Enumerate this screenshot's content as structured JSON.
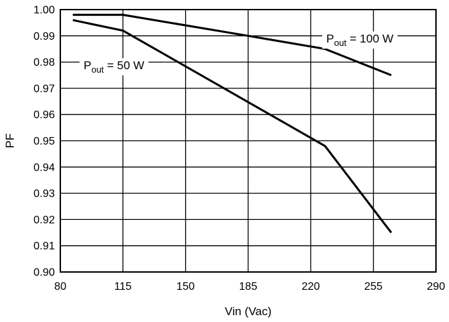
{
  "chart_data": {
    "type": "line",
    "title": "",
    "xlabel": "Vin (Vac)",
    "ylabel": "PF",
    "xlim": [
      80,
      290
    ],
    "ylim": [
      0.9,
      1.0
    ],
    "x_ticks": [
      80,
      115,
      150,
      185,
      220,
      255,
      290
    ],
    "x_tick_labels": [
      "80",
      "115",
      "150",
      "185",
      "220",
      "255",
      "290"
    ],
    "y_ticks": [
      0.9,
      0.91,
      0.92,
      0.93,
      0.94,
      0.95,
      0.96,
      0.97,
      0.98,
      0.99,
      1.0
    ],
    "y_tick_labels": [
      "0.90",
      "0.91",
      "0.92",
      "0.93",
      "0.94",
      "0.95",
      "0.96",
      "0.97",
      "0.98",
      "0.99",
      "1.00"
    ],
    "grid": true,
    "series": [
      {
        "name": "Pout = 100 W",
        "label_main": "P",
        "label_sub": "out",
        "label_rest": " = 100 W",
        "x": [
          87,
          115,
          185,
          228,
          265
        ],
        "y": [
          0.998,
          0.998,
          0.99,
          0.985,
          0.975
        ]
      },
      {
        "name": "Pout = 50 W",
        "label_main": "P",
        "label_sub": "out",
        "label_rest": " = 50 W",
        "x": [
          87,
          115,
          228,
          265
        ],
        "y": [
          0.996,
          0.992,
          0.948,
          0.915
        ]
      }
    ]
  }
}
